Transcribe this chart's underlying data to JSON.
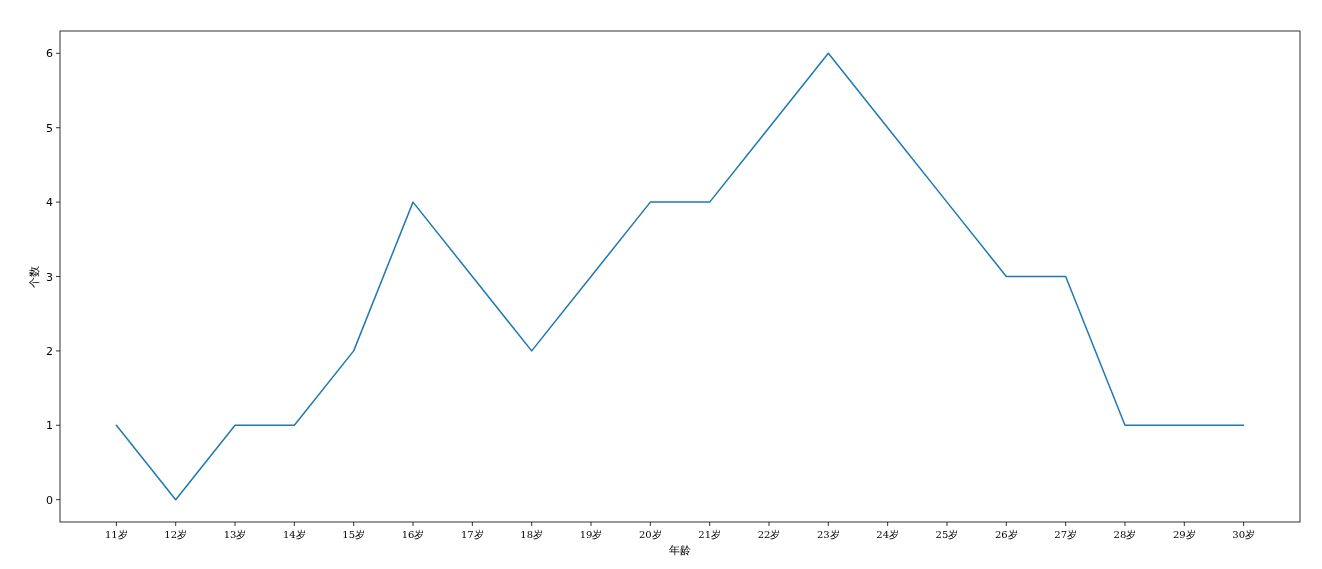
{
  "chart_data": {
    "type": "line",
    "xlabel": "年龄",
    "ylabel": "个数",
    "categories": [
      "11岁",
      "12岁",
      "13岁",
      "14岁",
      "15岁",
      "16岁",
      "17岁",
      "18岁",
      "19岁",
      "20岁",
      "21岁",
      "22岁",
      "23岁",
      "24岁",
      "25岁",
      "26岁",
      "27岁",
      "28岁",
      "29岁",
      "30岁"
    ],
    "series": [
      {
        "color": "#1f77b4",
        "values": [
          1,
          0,
          1,
          1,
          2,
          4,
          3,
          2,
          3,
          4,
          4,
          5,
          6,
          5,
          4,
          3,
          3,
          1,
          1,
          1
        ]
      }
    ],
    "ylim": [
      -0.3,
      6.3
    ],
    "yticks": [
      0,
      1,
      2,
      3,
      4,
      5,
      6
    ],
    "grid": false,
    "marker": "none",
    "line_style": "solid"
  }
}
